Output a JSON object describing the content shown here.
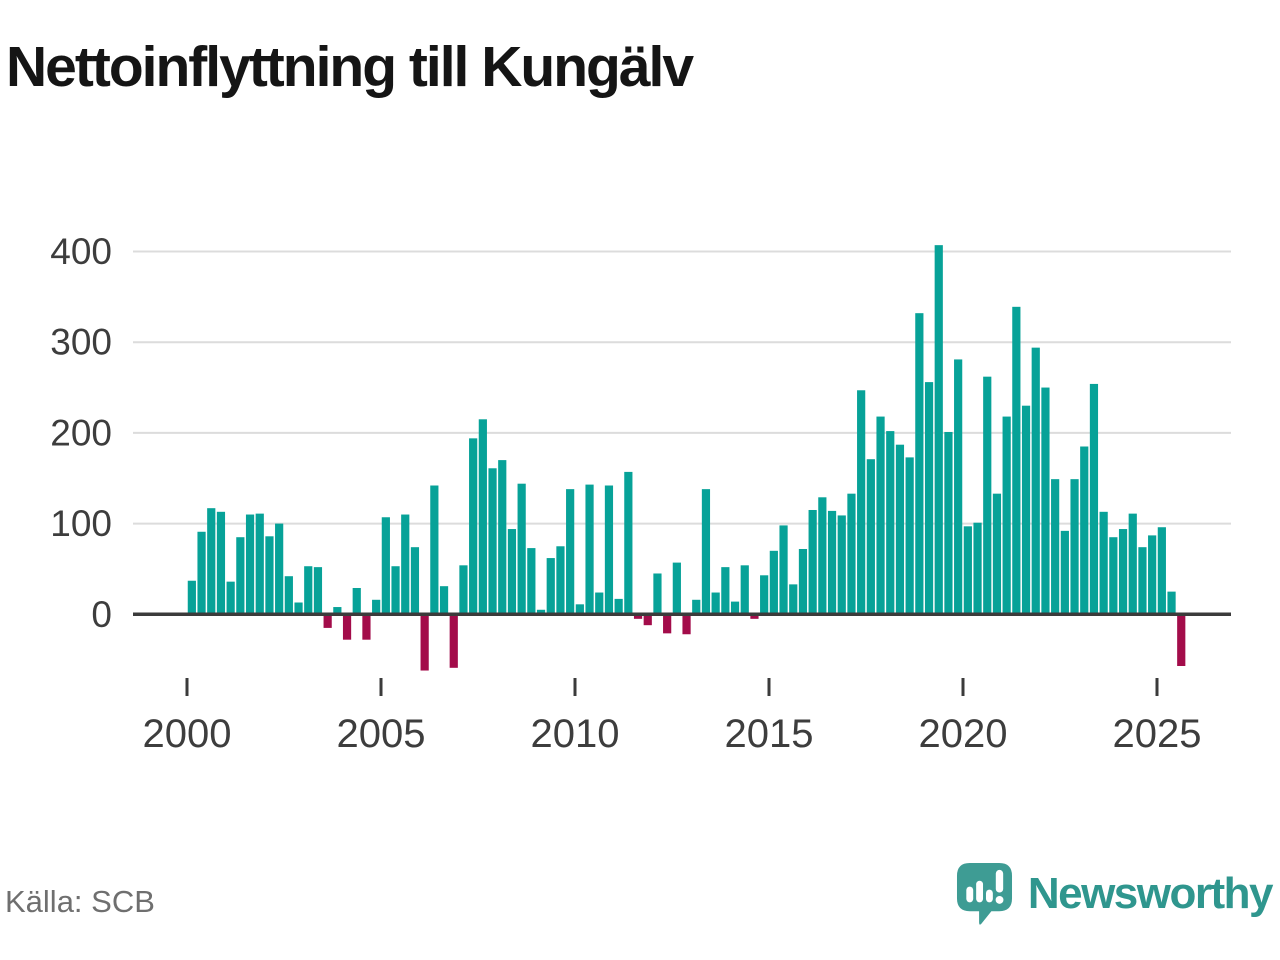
{
  "chart_data": {
    "type": "bar",
    "title": "Nettoinflyttning till Kungälv",
    "frequency": "quarterly",
    "x_start": "2000-Q1",
    "x_end": "2025-Q3",
    "xlabel": "",
    "ylabel": "",
    "ylim": [
      -80,
      420
    ],
    "grid": "horizontal",
    "yticks": [
      0,
      100,
      200,
      300,
      400
    ],
    "xticks": [
      2000,
      2005,
      2010,
      2015,
      2020,
      2025
    ],
    "series": [
      {
        "year": 2000,
        "quarters": [
          37,
          91,
          117,
          113
        ]
      },
      {
        "year": 2001,
        "quarters": [
          36,
          85,
          110,
          111
        ]
      },
      {
        "year": 2002,
        "quarters": [
          86,
          100,
          42,
          13
        ]
      },
      {
        "year": 2003,
        "quarters": [
          53,
          52,
          -15,
          8
        ]
      },
      {
        "year": 2004,
        "quarters": [
          -28,
          29,
          -28,
          16
        ]
      },
      {
        "year": 2005,
        "quarters": [
          107,
          53,
          110,
          74
        ]
      },
      {
        "year": 2006,
        "quarters": [
          -62,
          142,
          31,
          -59
        ]
      },
      {
        "year": 2007,
        "quarters": [
          54,
          194,
          215,
          161
        ]
      },
      {
        "year": 2008,
        "quarters": [
          170,
          94,
          144,
          73
        ]
      },
      {
        "year": 2009,
        "quarters": [
          5,
          62,
          75,
          138
        ]
      },
      {
        "year": 2010,
        "quarters": [
          11,
          143,
          24,
          142
        ]
      },
      {
        "year": 2011,
        "quarters": [
          17,
          157,
          -5,
          -12
        ]
      },
      {
        "year": 2012,
        "quarters": [
          45,
          -21,
          57,
          -22
        ]
      },
      {
        "year": 2013,
        "quarters": [
          16,
          138,
          24,
          52
        ]
      },
      {
        "year": 2014,
        "quarters": [
          14,
          54,
          -5,
          43
        ]
      },
      {
        "year": 2015,
        "quarters": [
          70,
          98,
          33,
          72
        ]
      },
      {
        "year": 2016,
        "quarters": [
          115,
          129,
          114,
          109
        ]
      },
      {
        "year": 2017,
        "quarters": [
          133,
          247,
          171,
          218
        ]
      },
      {
        "year": 2018,
        "quarters": [
          202,
          187,
          173,
          332
        ]
      },
      {
        "year": 2019,
        "quarters": [
          256,
          407,
          201,
          281
        ]
      },
      {
        "year": 2020,
        "quarters": [
          97,
          101,
          262,
          133
        ]
      },
      {
        "year": 2021,
        "quarters": [
          218,
          339,
          230,
          294
        ]
      },
      {
        "year": 2022,
        "quarters": [
          250,
          149,
          92,
          149
        ]
      },
      {
        "year": 2023,
        "quarters": [
          185,
          254,
          113,
          85
        ]
      },
      {
        "year": 2024,
        "quarters": [
          94,
          111,
          74,
          87
        ]
      },
      {
        "year": 2025,
        "quarters": [
          96,
          25,
          -57
        ]
      }
    ]
  },
  "colors": {
    "positive": "#07a298",
    "negative": "#a30c4a",
    "grid": "#dcdcdc",
    "axis": "#3b3b3b",
    "tick_label": "#3d3d3d",
    "title": "#151515",
    "source": "#6f6f6f",
    "brand": "#2f968e",
    "brand_icon": "#3e9c94"
  },
  "footer": {
    "source": "Källa: SCB",
    "brand": "Newsworthy",
    "brand_icon": "bar-chart-speech-bubble-icon"
  }
}
